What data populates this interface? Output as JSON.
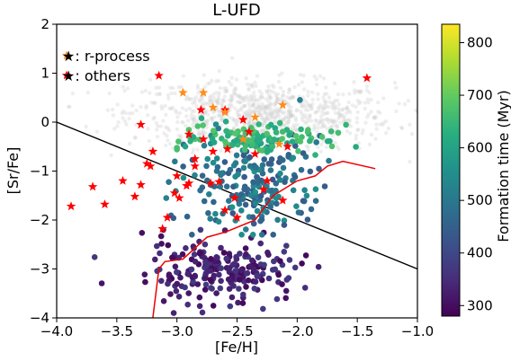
{
  "chart_data": {
    "type": "scatter",
    "title": "L-UFD",
    "xlabel": "[Fe/H]",
    "ylabel": "[Sr/Fe]",
    "xlim": [
      -4.0,
      -1.0
    ],
    "ylim": [
      -4,
      2
    ],
    "x_ticks": [
      "−4.0",
      "−3.5",
      "−3.0",
      "−2.5",
      "−2.0",
      "−1.5",
      "−1.0"
    ],
    "y_ticks": [
      "2",
      "1",
      "0",
      "−1",
      "−2",
      "−3",
      "−4"
    ],
    "legend": {
      "placement": "top-left",
      "entries": [
        "★: r-process",
        "★: others"
      ]
    },
    "colorbar": {
      "label": "Formation time (Myr)",
      "ticks": [
        "800",
        "700",
        "600",
        "500",
        "400",
        "300"
      ],
      "range": [
        280,
        835
      ],
      "colormap": "viridis"
    },
    "background_note": "faint gray scatter of comparison stars",
    "divider_line": {
      "x": [
        -4.0,
        -1.0
      ],
      "y": [
        0.0,
        -3.0
      ],
      "color": "#000000"
    },
    "curve": {
      "color": "#ee0000",
      "x": [
        -3.2,
        -3.15,
        -3.1,
        -2.95,
        -2.75,
        -2.6,
        -2.35,
        -2.2,
        -2.0,
        -1.85,
        -1.75,
        -1.62,
        -1.35
      ],
      "y": [
        -4.0,
        -3.0,
        -2.85,
        -2.8,
        -2.35,
        -2.25,
        -2.0,
        -1.5,
        -1.2,
        -1.1,
        -0.9,
        -0.8,
        -0.95
      ]
    },
    "clusters": [
      {
        "name": "ufd_low",
        "value_range": [
          290,
          380
        ],
        "x_mean": -2.62,
        "x_sd": 0.32,
        "y_mean": -3.05,
        "y_sd": 0.32,
        "count": 220
      },
      {
        "name": "ufd_mid",
        "value_range": [
          430,
          560
        ],
        "x_mean": -2.35,
        "x_sd": 0.28,
        "y_mean": -1.25,
        "y_sd": 0.5,
        "count": 200
      },
      {
        "name": "ufd_high",
        "value_range": [
          600,
          690
        ],
        "x_mean": -2.35,
        "x_sd": 0.3,
        "y_mean": -0.35,
        "y_sd": 0.15,
        "count": 110
      }
    ],
    "star_points": {
      "r_process": {
        "color": "#ff8c1a",
        "x": [
          -2.95,
          -2.78,
          -2.7,
          -2.12,
          -2.35,
          -2.6,
          -2.45,
          -2.15
        ],
        "y": [
          0.6,
          0.6,
          0.3,
          0.35,
          0.1,
          0.2,
          -0.35,
          -0.45
        ]
      },
      "others": {
        "color": "#ff0000",
        "x": [
          -3.88,
          -3.7,
          -3.6,
          -3.45,
          -3.35,
          -3.3,
          -3.25,
          -3.22,
          -3.12,
          -3.08,
          -3.02,
          -2.98,
          -2.92,
          -2.9,
          -2.85,
          -2.8,
          -2.78,
          -2.72,
          -2.7,
          -2.65,
          -2.6,
          -2.58,
          -2.52,
          -2.5,
          -2.45,
          -2.4,
          -2.35,
          -2.28,
          -2.25,
          -2.12,
          -2.08,
          -1.42,
          -3.15,
          -2.9,
          -3.3,
          -3.2,
          -3.0,
          -2.6,
          -2.85
        ],
        "y": [
          -1.72,
          -1.32,
          -1.68,
          -1.2,
          -1.52,
          -1.28,
          -0.85,
          -0.9,
          -2.18,
          -1.95,
          -1.45,
          -1.55,
          -1.3,
          -1.25,
          -0.75,
          0.25,
          -0.35,
          -1.25,
          -0.6,
          -1.22,
          0.25,
          -0.55,
          -1.55,
          -1.95,
          0.05,
          -0.2,
          -0.65,
          -1.38,
          -1.2,
          -1.6,
          -0.5,
          0.9,
          0.95,
          -0.25,
          -0.05,
          -0.6,
          -1.1,
          -1.8,
          -0.9
        ]
      }
    }
  }
}
